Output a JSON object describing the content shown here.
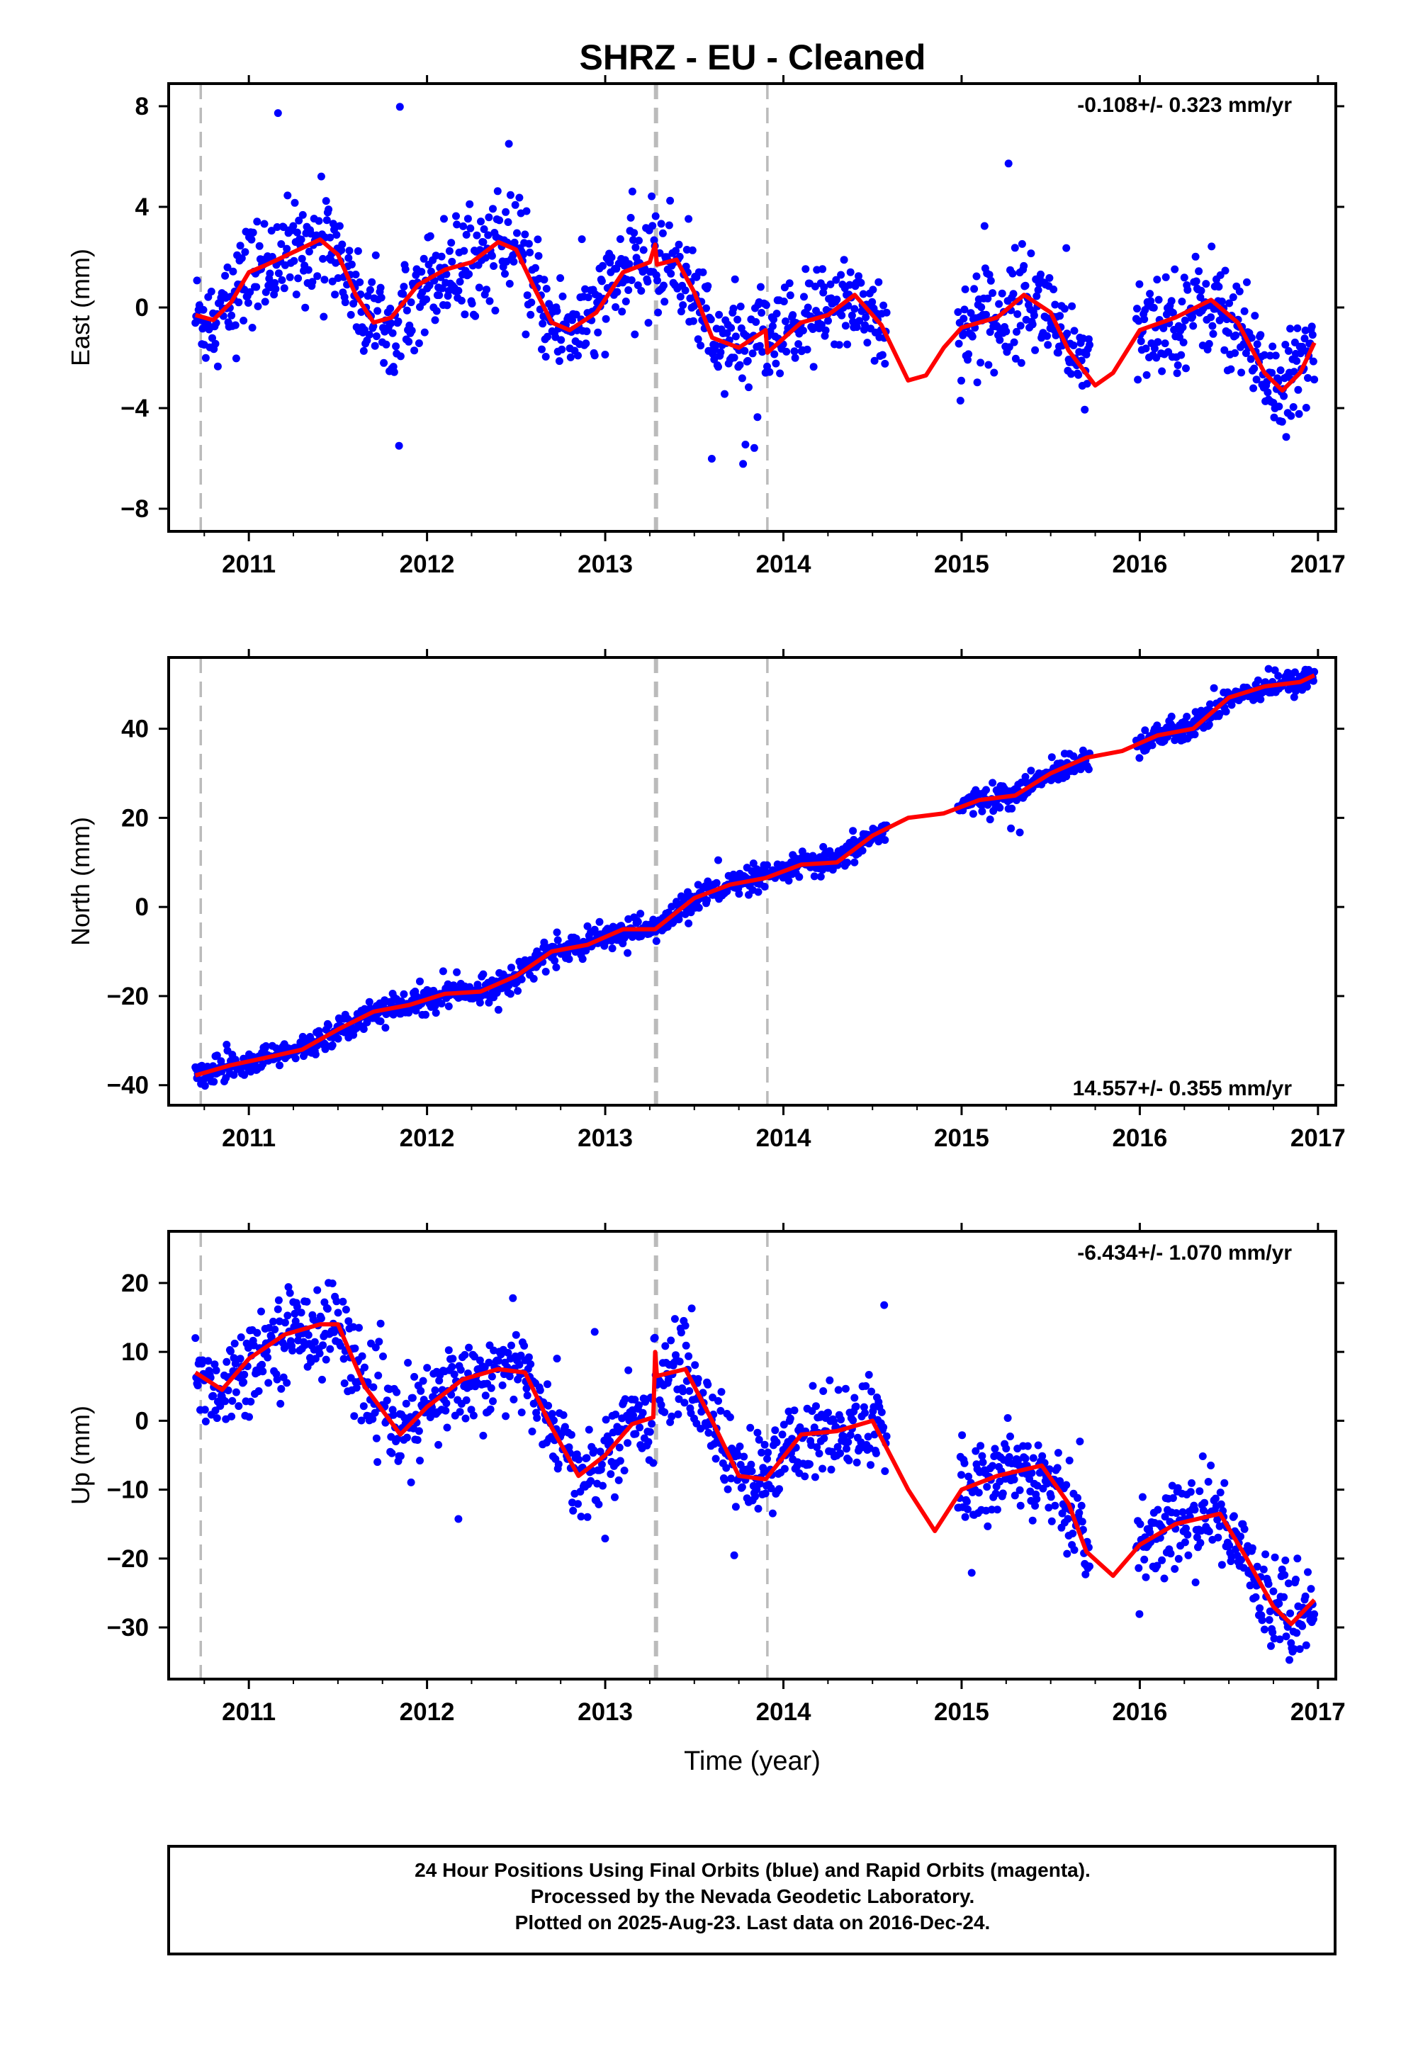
{
  "title": "SHRZ  - EU - Cleaned",
  "footer": {
    "line1": "24 Hour Positions Using Final Orbits (blue) and Rapid Orbits (magenta).",
    "line2": "Processed by the Nevada Geodetic Laboratory.",
    "line3": "Plotted on 2025-Aug-23. Last data on 2016-Dec-24."
  },
  "colors": {
    "points": "#0000ff",
    "fit": "#ff0000",
    "steps": "#bbbbbb",
    "frame": "#000000"
  },
  "chart_data": [
    {
      "type": "scatter",
      "ylabel": "East (mm)",
      "xlabel": "",
      "rate_label": "-0.108+/- 0.323 mm/yr",
      "xlim": [
        2010.55,
        2017.1
      ],
      "ylim": [
        -8.9,
        8.9
      ],
      "xticks": [
        2011,
        2012,
        2013,
        2014,
        2015,
        2016,
        2017
      ],
      "yticks": [
        8,
        4,
        0,
        -4,
        -8
      ],
      "step_lines": [
        2010.73,
        2013.28,
        2013.29,
        2013.91
      ],
      "data_ranges": [
        [
          2010.7,
          2014.58
        ],
        [
          2014.98,
          2015.72
        ],
        [
          2015.98,
          2016.98
        ]
      ],
      "fit": {
        "x": [
          2010.7,
          2010.8,
          2010.9,
          2011.0,
          2011.1,
          2011.25,
          2011.4,
          2011.5,
          2011.6,
          2011.7,
          2011.8,
          2011.95,
          2012.1,
          2012.25,
          2012.4,
          2012.5,
          2012.6,
          2012.7,
          2012.8,
          2012.95,
          2013.1,
          2013.25,
          2013.28,
          2013.29,
          2013.4,
          2013.5,
          2013.6,
          2013.75,
          2013.9,
          2013.91,
          2014.1,
          2014.25,
          2014.4,
          2014.55,
          2014.7,
          2014.8,
          2014.9,
          2015.0,
          2015.2,
          2015.35,
          2015.5,
          2015.6,
          2015.75,
          2015.85,
          2016.0,
          2016.2,
          2016.4,
          2016.55,
          2016.7,
          2016.8,
          2016.9,
          2016.98
        ],
        "y": [
          -0.3,
          -0.5,
          0.2,
          1.4,
          1.7,
          2.2,
          2.7,
          2.1,
          0.5,
          -0.6,
          -0.4,
          0.9,
          1.5,
          1.8,
          2.6,
          2.3,
          0.8,
          -0.6,
          -0.9,
          -0.2,
          1.4,
          1.8,
          2.5,
          1.7,
          1.9,
          0.6,
          -1.2,
          -1.6,
          -0.9,
          -1.8,
          -0.6,
          -0.3,
          0.5,
          -0.7,
          -2.9,
          -2.7,
          -1.6,
          -0.8,
          -0.4,
          0.5,
          -0.2,
          -1.7,
          -3.1,
          -2.6,
          -0.9,
          -0.4,
          0.3,
          -0.6,
          -2.6,
          -3.3,
          -2.6,
          -1.4
        ]
      }
    },
    {
      "type": "scatter",
      "ylabel": "North (mm)",
      "xlabel": "",
      "rate_label": "14.557+/- 0.355 mm/yr",
      "xlim": [
        2010.55,
        2017.1
      ],
      "ylim": [
        -44.5,
        56
      ],
      "xticks": [
        2011,
        2012,
        2013,
        2014,
        2015,
        2016,
        2017
      ],
      "yticks": [
        40,
        20,
        0,
        -20,
        -40
      ],
      "step_lines": [
        2010.73,
        2013.28,
        2013.29,
        2013.91
      ],
      "data_ranges": [
        [
          2010.7,
          2014.58
        ],
        [
          2014.98,
          2015.72
        ],
        [
          2015.98,
          2016.98
        ]
      ],
      "fit": {
        "x": [
          2010.7,
          2010.9,
          2011.1,
          2011.3,
          2011.5,
          2011.7,
          2011.9,
          2012.1,
          2012.3,
          2012.5,
          2012.7,
          2012.9,
          2013.1,
          2013.28,
          2013.5,
          2013.7,
          2013.9,
          2014.1,
          2014.3,
          2014.5,
          2014.7,
          2014.9,
          2015.1,
          2015.3,
          2015.5,
          2015.7,
          2015.9,
          2016.1,
          2016.3,
          2016.5,
          2016.7,
          2016.9,
          2016.98
        ],
        "y": [
          -37.8,
          -35.5,
          -33.8,
          -32,
          -27.5,
          -23.5,
          -22,
          -19.5,
          -19,
          -15.5,
          -10,
          -8.5,
          -5,
          -5,
          2,
          5,
          6.5,
          9.5,
          10,
          16,
          20,
          21,
          24,
          25,
          30,
          33.5,
          35,
          38.5,
          40,
          47,
          49.5,
          50.5,
          52
        ]
      }
    },
    {
      "type": "scatter",
      "ylabel": "Up (mm)",
      "xlabel": "Time (year)",
      "rate_label": "-6.434+/- 1.070 mm/yr",
      "xlim": [
        2010.55,
        2017.1
      ],
      "ylim": [
        -37.5,
        27.5
      ],
      "xticks": [
        2011,
        2012,
        2013,
        2014,
        2015,
        2016,
        2017
      ],
      "yticks": [
        20,
        10,
        0,
        -10,
        -20,
        -30
      ],
      "step_lines": [
        2010.73,
        2013.28,
        2013.29,
        2013.91
      ],
      "data_ranges": [
        [
          2010.7,
          2014.58
        ],
        [
          2014.98,
          2015.72
        ],
        [
          2015.98,
          2016.98
        ]
      ],
      "fit": {
        "x": [
          2010.7,
          2010.85,
          2011.0,
          2011.2,
          2011.4,
          2011.5,
          2011.65,
          2011.85,
          2012.0,
          2012.2,
          2012.4,
          2012.55,
          2012.7,
          2012.85,
          2013.0,
          2013.15,
          2013.27,
          2013.28,
          2013.29,
          2013.45,
          2013.6,
          2013.75,
          2013.9,
          2014.1,
          2014.3,
          2014.5,
          2014.7,
          2014.85,
          2015.0,
          2015.2,
          2015.45,
          2015.6,
          2015.7,
          2015.85,
          2016.0,
          2016.2,
          2016.45,
          2016.6,
          2016.75,
          2016.85,
          2016.98
        ],
        "y": [
          7,
          4.5,
          9,
          12.5,
          14,
          14,
          5,
          -2,
          2,
          6,
          7.5,
          7,
          -1,
          -8,
          -5,
          -0.5,
          0.5,
          10,
          6.5,
          7.5,
          0,
          -8,
          -8.5,
          -2,
          -1.5,
          0,
          -10,
          -16,
          -10,
          -8,
          -6.5,
          -12,
          -19,
          -22.5,
          -18,
          -15,
          -13.5,
          -20,
          -27,
          -29.5,
          -26
        ]
      }
    }
  ]
}
